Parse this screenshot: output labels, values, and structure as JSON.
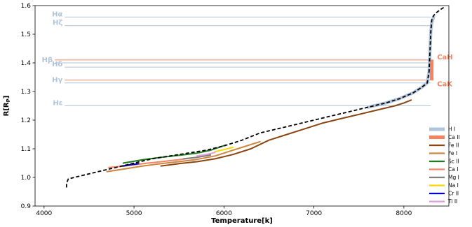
{
  "chart_data": {
    "type": "line",
    "xlabel": "Temperature[k]",
    "ylabel": "R[R$_P$]",
    "xlim": [
      3900,
      8500
    ],
    "ylim": [
      0.9,
      1.6
    ],
    "x_ticks": [
      4000,
      5000,
      6000,
      7000,
      8000
    ],
    "x_tick_labels": [
      "4000",
      "5000",
      "6000",
      "7000",
      "8000"
    ],
    "y_ticks": [
      0.9,
      1.0,
      1.1,
      1.2,
      1.3,
      1.4,
      1.5,
      1.6
    ],
    "y_tick_labels": [
      "0.9",
      "1.0",
      "1.1",
      "1.2",
      "1.3",
      "1.4",
      "1.5",
      "1.6"
    ],
    "grid": false,
    "legend_position": "lower right",
    "profile": {
      "style": "dashed",
      "color": "#000000",
      "x": [
        4250,
        4250,
        4270,
        4400,
        4600,
        4800,
        5000,
        5200,
        5400,
        5600,
        5800,
        6000,
        6200,
        6400,
        6600,
        6800,
        7000,
        7200,
        7400,
        7600,
        7800,
        7950,
        8100,
        8200,
        8260,
        8280,
        8290,
        8300,
        8310,
        8330,
        8360,
        8400,
        8450
      ],
      "y": [
        0.965,
        0.98,
        0.995,
        1.005,
        1.02,
        1.035,
        1.05,
        1.065,
        1.075,
        1.085,
        1.095,
        1.11,
        1.13,
        1.155,
        1.17,
        1.185,
        1.2,
        1.215,
        1.23,
        1.245,
        1.26,
        1.275,
        1.295,
        1.315,
        1.33,
        1.37,
        1.44,
        1.51,
        1.55,
        1.565,
        1.575,
        1.585,
        1.595
      ]
    },
    "reference_lines": [
      {
        "label": "Hα",
        "y": 1.56,
        "color": "#b0c4de",
        "x_start": 4230,
        "x_end": 8300,
        "label_side": "left"
      },
      {
        "label": "Hζ",
        "y": 1.53,
        "color": "#b0c4de",
        "x_start": 4230,
        "x_end": 8300,
        "label_side": "left"
      },
      {
        "label": "CaH",
        "y": 1.41,
        "color": "#f4845f",
        "x_start": 4120,
        "x_end": 8330,
        "label_side": "right"
      },
      {
        "label": "Hβ",
        "y": 1.4,
        "color": "#b0c4de",
        "x_start": 4120,
        "x_end": 8300,
        "label_side": "left"
      },
      {
        "label": "Hδ",
        "y": 1.385,
        "color": "#b0c4de",
        "x_start": 4230,
        "x_end": 8300,
        "label_side": "left"
      },
      {
        "label": "CaK",
        "y": 1.34,
        "color": "#f4845f",
        "x_start": 4230,
        "x_end": 8330,
        "label_side": "right"
      },
      {
        "label": "Hγ",
        "y": 1.33,
        "color": "#b0c4de",
        "x_start": 4230,
        "x_end": 8300,
        "label_side": "left"
      },
      {
        "label": "Hε",
        "y": 1.25,
        "color": "#b0c4de",
        "x_start": 4230,
        "x_end": 8300,
        "label_side": "left"
      }
    ],
    "series": [
      {
        "name": "H I",
        "color": "#b0c4de",
        "width": 4.5,
        "x": [
          7600,
          7800,
          7950,
          8100,
          8200,
          8260,
          8280,
          8290,
          8300,
          8310,
          8330
        ],
        "y": [
          1.245,
          1.26,
          1.275,
          1.295,
          1.315,
          1.33,
          1.37,
          1.44,
          1.51,
          1.54,
          1.56
        ]
      },
      {
        "name": "Ca II",
        "color": "#f4845f",
        "width": 5,
        "x": [
          8310,
          8310
        ],
        "y": [
          1.34,
          1.41
        ]
      },
      {
        "name": "Fe II",
        "color": "#8b4513",
        "width": 2,
        "x": [
          5300,
          5500,
          5700,
          5900,
          6100,
          6300,
          6500,
          6700,
          6900,
          7100,
          7300,
          7500,
          7700,
          7900,
          8000,
          8080
        ],
        "y": [
          1.04,
          1.048,
          1.055,
          1.065,
          1.08,
          1.1,
          1.13,
          1.15,
          1.17,
          1.19,
          1.205,
          1.22,
          1.235,
          1.25,
          1.26,
          1.27
        ]
      },
      {
        "name": "Fe I",
        "color": "#cd853f",
        "width": 2,
        "x": [
          4700,
          4900,
          5100,
          5300,
          5500,
          5700,
          5900,
          6050,
          6200,
          6400
        ],
        "y": [
          1.02,
          1.03,
          1.04,
          1.048,
          1.055,
          1.063,
          1.075,
          1.09,
          1.105,
          1.125
        ]
      },
      {
        "name": "Sc II",
        "color": "#1e7b1e",
        "width": 2,
        "x": [
          4880,
          5100,
          5300,
          5500,
          5700,
          5850,
          6020
        ],
        "y": [
          1.05,
          1.062,
          1.07,
          1.077,
          1.085,
          1.095,
          1.113
        ]
      },
      {
        "name": "Ca I",
        "color": "#f4845f",
        "width": 2,
        "x": [
          4720,
          4900,
          5100,
          5300,
          5500,
          5700,
          5850
        ],
        "y": [
          1.035,
          1.04,
          1.048,
          1.055,
          1.062,
          1.07,
          1.08
        ]
      },
      {
        "name": "Mg I",
        "color": "#808080",
        "width": 2,
        "x": [
          5550,
          5700,
          5850
        ],
        "y": [
          1.065,
          1.07,
          1.078
        ]
      },
      {
        "name": "Na I",
        "color": "#ffd700",
        "width": 2,
        "x": [
          5900,
          6000,
          6100
        ],
        "y": [
          1.09,
          1.097,
          1.105
        ]
      },
      {
        "name": "Cr II",
        "color": "#0000cd",
        "width": 2.2,
        "x": [
          4880,
          4950,
          5050
        ],
        "y": [
          1.04,
          1.044,
          1.048
        ]
      },
      {
        "name": "Ti II",
        "color": "#dda0dd",
        "width": 2,
        "x": [
          5700,
          5800,
          5900
        ],
        "y": [
          1.075,
          1.08,
          1.087
        ]
      }
    ]
  }
}
